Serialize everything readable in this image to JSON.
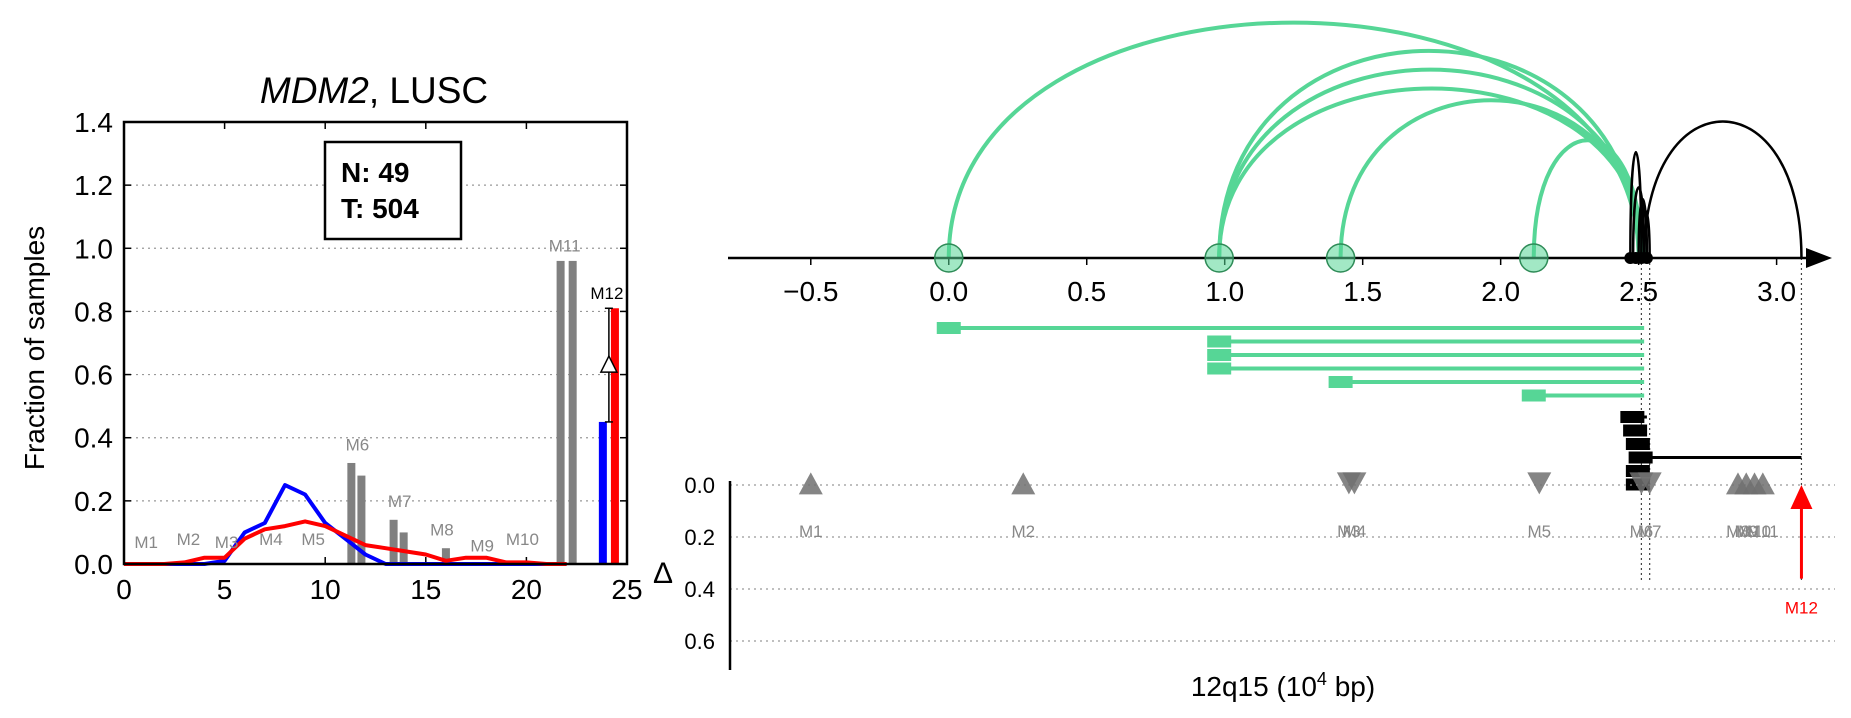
{
  "chart_data": [
    {
      "type": "line+bar",
      "title_gene": "MDM2",
      "title_rest": ", LUSC",
      "ylabel": "Fraction of samples",
      "xlim": [
        0,
        25
      ],
      "ylim": [
        0,
        1.4
      ],
      "xticks": [
        "0",
        "5",
        "10",
        "15",
        "20",
        "25"
      ],
      "yticks": [
        "0.0",
        "0.2",
        "0.4",
        "0.6",
        "0.8",
        "1.0",
        "1.2",
        "1.4"
      ],
      "grid": "horizontal-dotted",
      "stats": {
        "n_label": "N: 49",
        "t_label": "T: 504"
      },
      "series": [
        {
          "color": "#0000ff",
          "x": [
            0,
            1,
            2,
            3,
            4,
            5,
            6,
            7,
            8,
            9,
            10,
            11,
            12,
            13,
            14,
            15,
            16,
            17,
            18,
            19,
            20,
            21,
            22
          ],
          "y": [
            0,
            0,
            0,
            0,
            0,
            0.01,
            0.1,
            0.13,
            0.25,
            0.22,
            0.13,
            0.08,
            0.03,
            0,
            0,
            0,
            0,
            0,
            0,
            0,
            0,
            0,
            0
          ]
        },
        {
          "color": "#ff0000",
          "x": [
            0,
            1,
            2,
            3,
            4,
            5,
            6,
            7,
            8,
            9,
            10,
            11,
            12,
            13,
            14,
            15,
            16,
            17,
            18,
            19,
            20,
            21,
            22
          ],
          "y": [
            0,
            0,
            0,
            0.005,
            0.02,
            0.02,
            0.08,
            0.11,
            0.12,
            0.135,
            0.12,
            0.09,
            0.06,
            0.05,
            0.04,
            0.03,
            0.01,
            0.02,
            0.02,
            0.005,
            0.005,
            0,
            0
          ]
        }
      ],
      "bars": [
        {
          "x": 11.3,
          "value": 0.32,
          "color": "#808080"
        },
        {
          "x": 11.8,
          "value": 0.28,
          "color": "#808080"
        },
        {
          "x": 13.4,
          "value": 0.14,
          "color": "#808080"
        },
        {
          "x": 13.9,
          "value": 0.1,
          "color": "#808080"
        },
        {
          "x": 16.0,
          "value": 0.05,
          "color": "#808080"
        },
        {
          "x": 21.7,
          "value": 0.96,
          "color": "#808080"
        },
        {
          "x": 22.3,
          "value": 0.96,
          "color": "#808080"
        },
        {
          "x": 23.8,
          "value": 0.45,
          "color": "#0000ff"
        },
        {
          "x": 24.4,
          "value": 0.81,
          "color": "#ff0000"
        }
      ],
      "delta": {
        "x": 24.1,
        "low": 0.45,
        "high": 0.81,
        "marker": "triangle-up"
      },
      "motif_labels": [
        {
          "text": "M1",
          "x": 1.1,
          "y": 0.05,
          "color": "#888888"
        },
        {
          "text": "M2",
          "x": 3.2,
          "y": 0.06,
          "color": "#888888"
        },
        {
          "text": "M3",
          "x": 5.1,
          "y": 0.05,
          "color": "#888888"
        },
        {
          "text": "M4",
          "x": 7.3,
          "y": 0.06,
          "color": "#888888"
        },
        {
          "text": "M5",
          "x": 9.4,
          "y": 0.06,
          "color": "#888888"
        },
        {
          "text": "M6",
          "x": 11.6,
          "y": 0.36,
          "color": "#888888"
        },
        {
          "text": "M7",
          "x": 13.7,
          "y": 0.18,
          "color": "#888888"
        },
        {
          "text": "M8",
          "x": 15.8,
          "y": 0.09,
          "color": "#888888"
        },
        {
          "text": "M9",
          "x": 17.8,
          "y": 0.04,
          "color": "#888888"
        },
        {
          "text": "M10",
          "x": 19.8,
          "y": 0.06,
          "color": "#888888"
        },
        {
          "text": "M11",
          "x": 21.9,
          "y": 0.99,
          "color": "#888888"
        },
        {
          "text": "M12",
          "x": 24.0,
          "y": 0.84,
          "color": "#000000"
        }
      ]
    },
    {
      "type": "arc-diagram",
      "xlim": [
        -0.8,
        3.15
      ],
      "xticks": [
        {
          "v": -0.5,
          "label": "−0.5"
        },
        {
          "v": 0.0,
          "label": "0.0"
        },
        {
          "v": 0.5,
          "label": "0.5"
        },
        {
          "v": 1.0,
          "label": "1.0"
        },
        {
          "v": 1.5,
          "label": "1.5"
        },
        {
          "v": 2.0,
          "label": "2.0"
        },
        {
          "v": 2.5,
          "label": "2.5"
        },
        {
          "v": 3.0,
          "label": "3.0"
        }
      ],
      "green_color": "#56d696",
      "green_nodes": [
        0.0,
        0.98,
        1.42,
        2.12
      ],
      "arcs": [
        {
          "from": 0.0,
          "to": 2.5,
          "height": 1.0,
          "color": "#56d696"
        },
        {
          "from": 0.98,
          "to": 2.5,
          "height": 0.88,
          "color": "#56d696"
        },
        {
          "from": 0.98,
          "to": 2.51,
          "height": 0.8,
          "color": "#56d696"
        },
        {
          "from": 0.98,
          "to": 2.52,
          "height": 0.72,
          "color": "#56d696"
        },
        {
          "from": 1.42,
          "to": 2.51,
          "height": 0.67,
          "color": "#56d696"
        },
        {
          "from": 2.12,
          "to": 2.51,
          "height": 0.5,
          "color": "#56d696"
        },
        {
          "from": 2.47,
          "to": 2.51,
          "height": 0.45,
          "color": "#000000"
        },
        {
          "from": 2.48,
          "to": 2.52,
          "height": 0.3,
          "color": "#000000"
        },
        {
          "from": 2.5,
          "to": 2.53,
          "height": 0.25,
          "color": "#000000"
        },
        {
          "from": 2.51,
          "to": 2.54,
          "height": 0.2,
          "color": "#000000"
        },
        {
          "from": 2.52,
          "to": 3.09,
          "height": 0.58,
          "color": "#000000"
        }
      ],
      "black_nodes": [
        2.47,
        2.49,
        2.51,
        2.53
      ],
      "vlines": [
        2.51,
        2.54,
        3.09
      ],
      "segments": [
        {
          "block": 0.0,
          "end": 2.52,
          "color": "#56d696"
        },
        {
          "block": 0.98,
          "end": 2.52,
          "color": "#56d696"
        },
        {
          "block": 0.98,
          "end": 2.52,
          "color": "#56d696"
        },
        {
          "block": 0.98,
          "end": 2.52,
          "color": "#56d696"
        },
        {
          "block": 1.42,
          "end": 2.52,
          "color": "#56d696"
        },
        {
          "block": 2.12,
          "end": 2.52,
          "color": "#56d696"
        },
        {
          "block": 2.47,
          "end": 2.53,
          "color": "#000000"
        },
        {
          "block": 2.48,
          "end": 2.52,
          "color": "#000000"
        },
        {
          "block": 2.49,
          "end": 2.52,
          "color": "#000000"
        },
        {
          "block": 2.5,
          "end": 3.09,
          "color": "#000000"
        },
        {
          "block": 2.49,
          "end": 2.53,
          "color": "#000000"
        },
        {
          "block": 2.49,
          "end": 2.52,
          "color": "#000000"
        }
      ]
    },
    {
      "type": "scatter",
      "xlabel_pre": "12q15 (10",
      "xlabel_sup": "4",
      "xlabel_post": " bp)",
      "ylabel": "Δ",
      "ylim": [
        0,
        0.6
      ],
      "yticks": [
        "0.0",
        "0.2",
        "0.4",
        "0.6"
      ],
      "grid": "horizontal-dotted",
      "markers": [
        {
          "label": "M1",
          "x": -0.5,
          "delta": 0.04,
          "dir": "up",
          "color": "#707070"
        },
        {
          "label": "M2",
          "x": 0.27,
          "delta": 0.04,
          "dir": "up",
          "color": "#707070"
        },
        {
          "label": "M3",
          "x": 1.45,
          "delta": 0.04,
          "dir": "down",
          "color": "#707070"
        },
        {
          "label": "M4",
          "x": 1.47,
          "delta": 0.04,
          "dir": "down",
          "color": "#707070"
        },
        {
          "label": "M5",
          "x": 2.14,
          "delta": 0.04,
          "dir": "down",
          "color": "#707070"
        },
        {
          "label": "M6",
          "x": 2.51,
          "delta": 0.04,
          "dir": "down",
          "color": "#707070"
        },
        {
          "label": "M7",
          "x": 2.54,
          "delta": 0.04,
          "dir": "down",
          "color": "#707070"
        },
        {
          "label": "M8",
          "x": 2.86,
          "delta": 0.04,
          "dir": "up",
          "color": "#707070"
        },
        {
          "label": "M9",
          "x": 2.89,
          "delta": 0.04,
          "dir": "up",
          "color": "#707070"
        },
        {
          "label": "M10",
          "x": 2.92,
          "delta": 0.04,
          "dir": "up",
          "color": "#707070"
        },
        {
          "label": "M11",
          "x": 2.95,
          "delta": 0.04,
          "dir": "up",
          "color": "#707070"
        },
        {
          "label": "M12",
          "x": 3.09,
          "delta": 0.36,
          "dir": "arrow-up",
          "color": "#ff0000"
        }
      ],
      "marker_label_texts": {
        "M3_M4_overlap": "M3M4",
        "M6_M7_overlap": "M6M7",
        "M8_to_M11_overlap": "M8M9M10M11"
      }
    }
  ]
}
